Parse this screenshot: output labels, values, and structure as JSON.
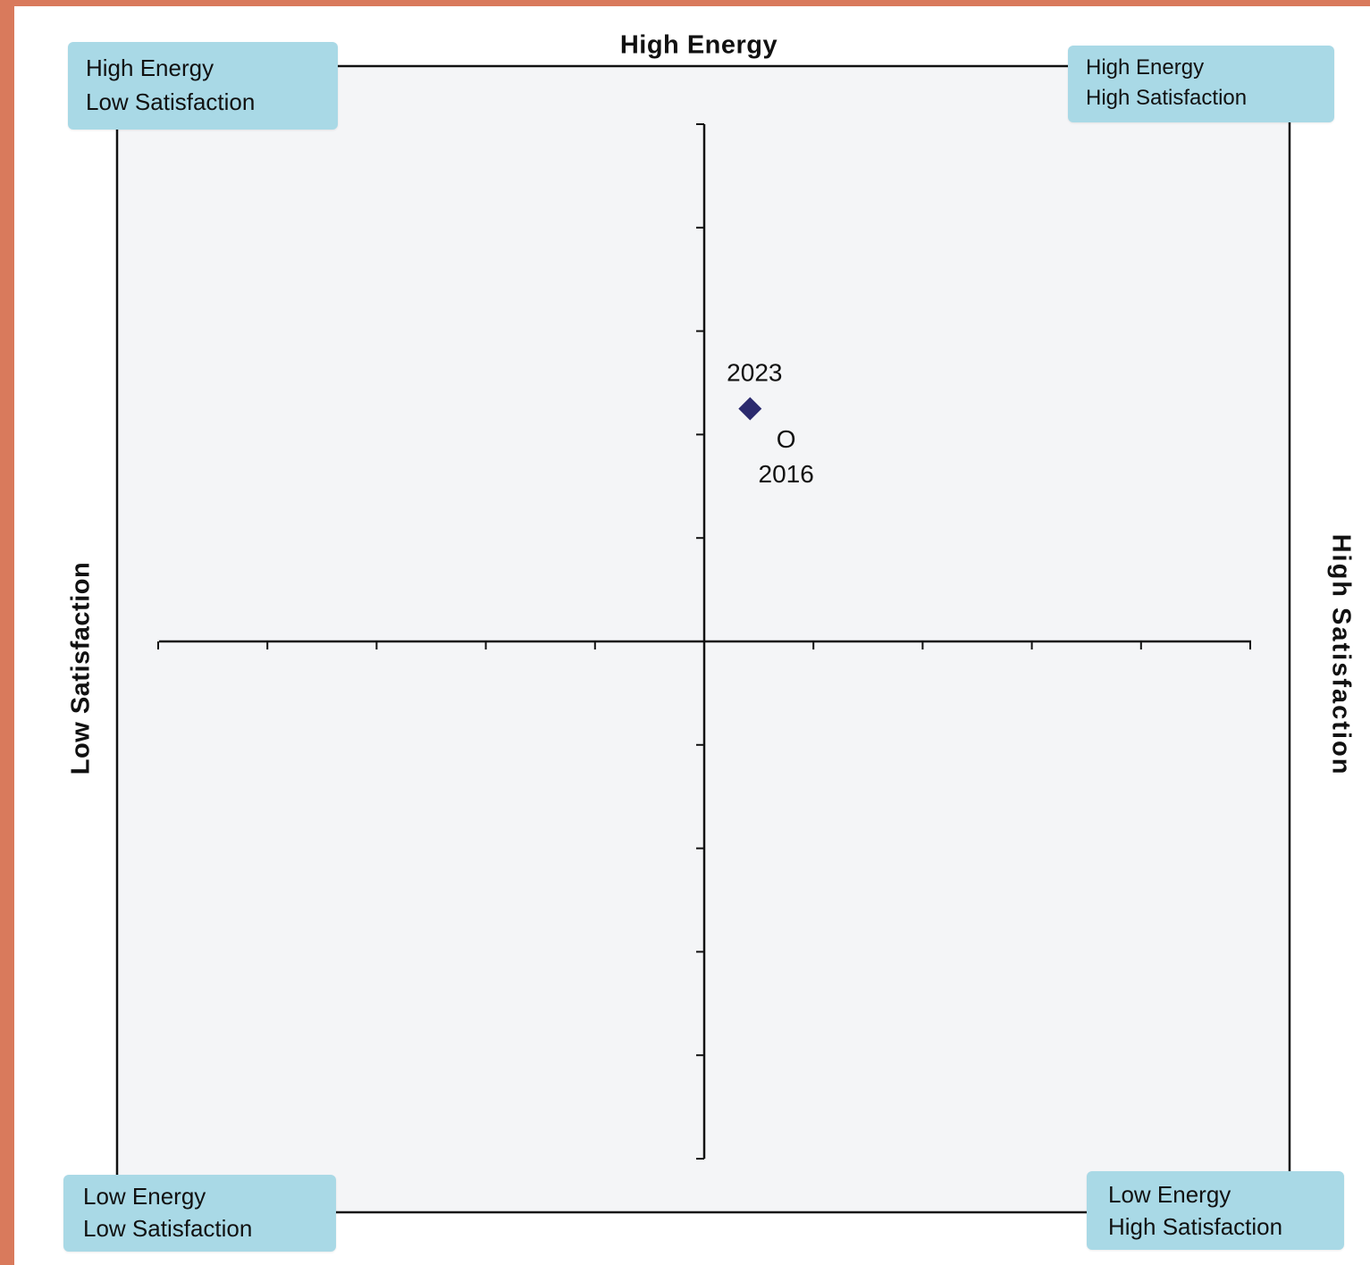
{
  "chart_data": {
    "type": "scatter",
    "xlim": [
      -5,
      5
    ],
    "ylim": [
      -5,
      5
    ],
    "grid": false,
    "axes": {
      "top": "High Energy",
      "left": "Low Satisfaction",
      "right": "High Satisfaction"
    },
    "quadrants": {
      "top_left": [
        "High Energy",
        "Low Satisfaction"
      ],
      "top_right": [
        "High Energy",
        "High Satisfaction"
      ],
      "bottom_left": [
        "Low Energy",
        "Low Satisfaction"
      ],
      "bottom_right": [
        "Low Energy",
        "High Satisfaction"
      ]
    },
    "points": [
      {
        "label": "2023",
        "x": 0.42,
        "y": 2.25,
        "marker": "filled-diamond",
        "color": "#2b2a6e"
      },
      {
        "label": "2016",
        "x": 0.75,
        "y": 1.95,
        "marker": "letter-o",
        "glyph": "O",
        "color": "#111111"
      }
    ]
  },
  "colors": {
    "background_border": "#d97a5c",
    "plot_area": "#f4f5f7",
    "quadrant_box": "#a9d9e6",
    "axis": "#111111"
  }
}
